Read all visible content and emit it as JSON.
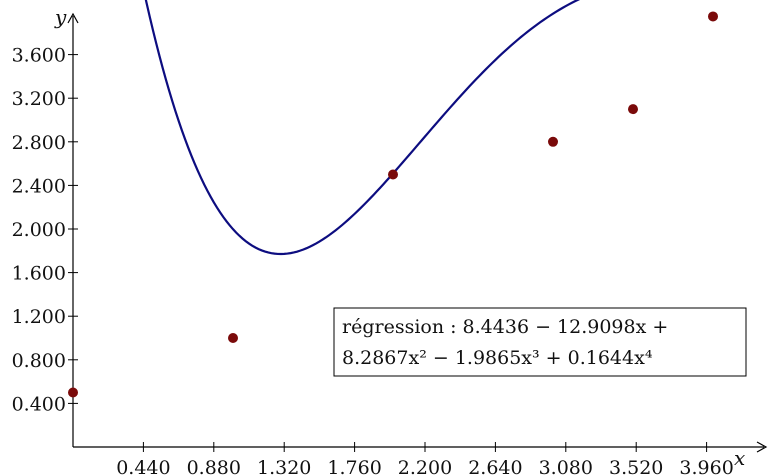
{
  "chart_data": {
    "type": "scatter",
    "xlabel": "x",
    "ylabel": "y",
    "x_ticks": [
      "0.440",
      "0.880",
      "1.320",
      "1.760",
      "2.200",
      "2.640",
      "3.080",
      "3.520",
      "3.960"
    ],
    "y_ticks": [
      "0.400",
      "0.800",
      "1.200",
      "1.600",
      "2.000",
      "2.400",
      "2.800",
      "3.200",
      "3.600"
    ],
    "xlim": [
      0.0,
      4.4
    ],
    "ylim": [
      0.0,
      4.0
    ],
    "grid": false,
    "points": [
      {
        "x": 0.0,
        "y": 0.5
      },
      {
        "x": 1.0,
        "y": 1.0
      },
      {
        "x": 2.0,
        "y": 2.5
      },
      {
        "x": 3.0,
        "y": 2.8
      },
      {
        "x": 3.5,
        "y": 3.1
      },
      {
        "x": 4.0,
        "y": 3.95
      }
    ],
    "regression": {
      "coefficients": [
        8.4436,
        -12.9098,
        8.2867,
        -1.9865,
        0.1644
      ],
      "label_line1": "régression : 8.4436 − 12.9098x +",
      "label_line2": "8.2867x² − 1.9865x³ + 0.1644x⁴"
    },
    "colors": {
      "curve": "#0d0d80",
      "points": "#7a0a0a",
      "axis": "#000000"
    }
  }
}
